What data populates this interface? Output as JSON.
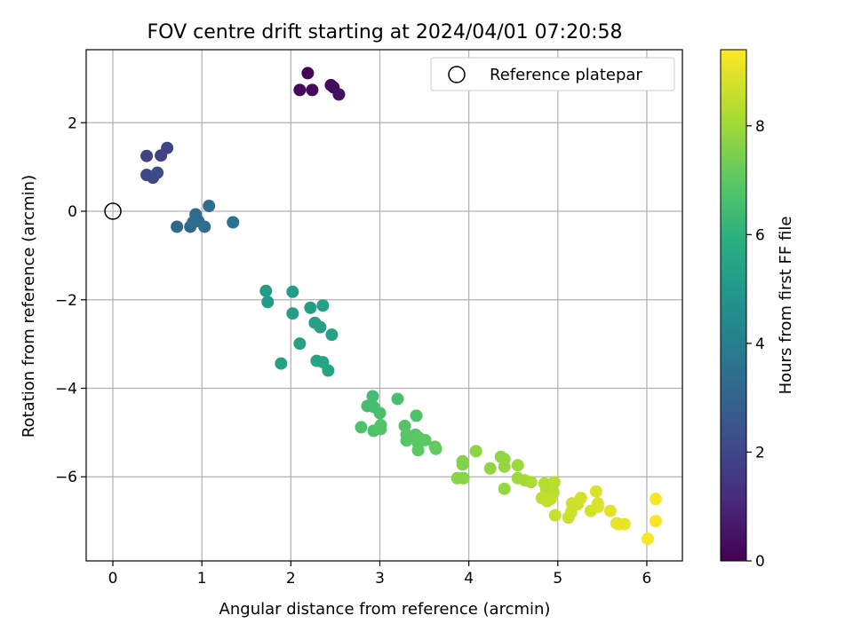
{
  "chart_data": {
    "type": "scatter",
    "title": "FOV centre drift starting at 2024/04/01 07:20:58",
    "xlabel": "Angular distance from reference (arcmin)",
    "ylabel": "Rotation from reference (arcmin)",
    "xlim": [
      -0.3,
      6.4
    ],
    "ylim": [
      -7.9,
      3.65
    ],
    "xticks": [
      0,
      1,
      2,
      3,
      4,
      5,
      6
    ],
    "yticks": [
      -6,
      -4,
      -2,
      0,
      2
    ],
    "grid": true,
    "legend": {
      "placement": "top-right",
      "entries": [
        "Reference platepar"
      ]
    },
    "reference_point": {
      "x": 0,
      "y": 0
    },
    "colorbar": {
      "label": "Hours from first FF file",
      "range": [
        0,
        9.4
      ],
      "ticks": [
        0,
        2,
        4,
        6,
        8
      ],
      "colormap": "viridis"
    },
    "points": [
      {
        "x": 2.19,
        "y": 3.12,
        "t": 0.1
      },
      {
        "x": 2.1,
        "y": 2.74,
        "t": 0.2
      },
      {
        "x": 2.24,
        "y": 2.74,
        "t": 0.2
      },
      {
        "x": 2.45,
        "y": 2.85,
        "t": 0.3
      },
      {
        "x": 2.48,
        "y": 2.8,
        "t": 0.3
      },
      {
        "x": 2.54,
        "y": 2.64,
        "t": 0.4
      },
      {
        "x": 0.38,
        "y": 1.25,
        "t": 1.8
      },
      {
        "x": 0.54,
        "y": 1.26,
        "t": 1.8
      },
      {
        "x": 0.61,
        "y": 1.43,
        "t": 1.9
      },
      {
        "x": 0.38,
        "y": 0.82,
        "t": 2.0
      },
      {
        "x": 0.45,
        "y": 0.76,
        "t": 2.0
      },
      {
        "x": 0.5,
        "y": 0.87,
        "t": 2.1
      },
      {
        "x": 0.72,
        "y": -0.35,
        "t": 3.2
      },
      {
        "x": 0.87,
        "y": -0.35,
        "t": 3.2
      },
      {
        "x": 0.9,
        "y": -0.25,
        "t": 3.3
      },
      {
        "x": 0.93,
        "y": -0.07,
        "t": 3.3
      },
      {
        "x": 0.96,
        "y": -0.22,
        "t": 3.3
      },
      {
        "x": 1.03,
        "y": -0.35,
        "t": 3.4
      },
      {
        "x": 1.08,
        "y": 0.12,
        "t": 3.4
      },
      {
        "x": 1.35,
        "y": -0.25,
        "t": 3.5
      },
      {
        "x": 1.72,
        "y": -1.8,
        "t": 5.1
      },
      {
        "x": 1.74,
        "y": -2.05,
        "t": 5.1
      },
      {
        "x": 2.02,
        "y": -1.82,
        "t": 5.2
      },
      {
        "x": 2.02,
        "y": -2.31,
        "t": 5.2
      },
      {
        "x": 2.22,
        "y": -2.18,
        "t": 5.2
      },
      {
        "x": 2.36,
        "y": -2.13,
        "t": 5.3
      },
      {
        "x": 2.27,
        "y": -2.52,
        "t": 5.3
      },
      {
        "x": 2.33,
        "y": -2.62,
        "t": 5.3
      },
      {
        "x": 2.46,
        "y": -2.79,
        "t": 5.4
      },
      {
        "x": 2.1,
        "y": -2.99,
        "t": 5.4
      },
      {
        "x": 1.89,
        "y": -3.44,
        "t": 5.4
      },
      {
        "x": 2.29,
        "y": -3.38,
        "t": 5.5
      },
      {
        "x": 2.36,
        "y": -3.41,
        "t": 5.5
      },
      {
        "x": 2.42,
        "y": -3.6,
        "t": 5.5
      },
      {
        "x": 2.92,
        "y": -4.18,
        "t": 6.5
      },
      {
        "x": 2.86,
        "y": -4.4,
        "t": 6.5
      },
      {
        "x": 2.93,
        "y": -4.42,
        "t": 6.5
      },
      {
        "x": 3.0,
        "y": -4.56,
        "t": 6.6
      },
      {
        "x": 3.2,
        "y": -4.24,
        "t": 6.6
      },
      {
        "x": 3.41,
        "y": -4.62,
        "t": 6.7
      },
      {
        "x": 2.79,
        "y": -4.88,
        "t": 6.7
      },
      {
        "x": 2.93,
        "y": -4.96,
        "t": 6.7
      },
      {
        "x": 3.01,
        "y": -4.83,
        "t": 6.8
      },
      {
        "x": 3.01,
        "y": -4.92,
        "t": 6.8
      },
      {
        "x": 3.28,
        "y": -4.85,
        "t": 6.8
      },
      {
        "x": 3.3,
        "y": -5.05,
        "t": 6.9
      },
      {
        "x": 3.3,
        "y": -5.18,
        "t": 6.9
      },
      {
        "x": 3.4,
        "y": -5.05,
        "t": 6.9
      },
      {
        "x": 3.44,
        "y": -5.12,
        "t": 7.0
      },
      {
        "x": 3.43,
        "y": -5.24,
        "t": 7.0
      },
      {
        "x": 3.43,
        "y": -5.4,
        "t": 7.0
      },
      {
        "x": 3.51,
        "y": -5.17,
        "t": 7.0
      },
      {
        "x": 3.62,
        "y": -5.32,
        "t": 7.1
      },
      {
        "x": 3.63,
        "y": -5.37,
        "t": 7.1
      },
      {
        "x": 3.93,
        "y": -5.65,
        "t": 7.6
      },
      {
        "x": 3.93,
        "y": -5.72,
        "t": 7.6
      },
      {
        "x": 3.87,
        "y": -6.03,
        "t": 7.7
      },
      {
        "x": 3.94,
        "y": -6.03,
        "t": 7.7
      },
      {
        "x": 4.08,
        "y": -5.42,
        "t": 7.7
      },
      {
        "x": 4.24,
        "y": -5.81,
        "t": 7.8
      },
      {
        "x": 4.36,
        "y": -5.55,
        "t": 7.8
      },
      {
        "x": 4.4,
        "y": -5.6,
        "t": 7.8
      },
      {
        "x": 4.4,
        "y": -5.77,
        "t": 7.9
      },
      {
        "x": 4.4,
        "y": -6.27,
        "t": 7.9
      },
      {
        "x": 4.55,
        "y": -5.74,
        "t": 8.0
      },
      {
        "x": 4.55,
        "y": -6.03,
        "t": 8.0
      },
      {
        "x": 4.63,
        "y": -6.08,
        "t": 8.1
      },
      {
        "x": 4.7,
        "y": -6.12,
        "t": 8.2
      },
      {
        "x": 4.85,
        "y": -6.15,
        "t": 8.3
      },
      {
        "x": 4.87,
        "y": -6.28,
        "t": 8.3
      },
      {
        "x": 4.96,
        "y": -6.12,
        "t": 8.4
      },
      {
        "x": 4.95,
        "y": -6.35,
        "t": 8.4
      },
      {
        "x": 4.82,
        "y": -6.48,
        "t": 8.5
      },
      {
        "x": 4.88,
        "y": -6.55,
        "t": 8.5
      },
      {
        "x": 4.92,
        "y": -6.5,
        "t": 8.5
      },
      {
        "x": 4.97,
        "y": -6.87,
        "t": 8.6
      },
      {
        "x": 5.12,
        "y": -6.92,
        "t": 8.6
      },
      {
        "x": 5.15,
        "y": -6.8,
        "t": 8.7
      },
      {
        "x": 5.16,
        "y": -6.6,
        "t": 8.7
      },
      {
        "x": 5.22,
        "y": -6.62,
        "t": 8.7
      },
      {
        "x": 5.26,
        "y": -6.48,
        "t": 8.8
      },
      {
        "x": 5.37,
        "y": -6.77,
        "t": 8.8
      },
      {
        "x": 5.43,
        "y": -6.33,
        "t": 8.9
      },
      {
        "x": 5.45,
        "y": -6.6,
        "t": 8.9
      },
      {
        "x": 5.45,
        "y": -6.68,
        "t": 8.9
      },
      {
        "x": 5.59,
        "y": -6.77,
        "t": 9.0
      },
      {
        "x": 5.66,
        "y": -7.05,
        "t": 9.0
      },
      {
        "x": 5.68,
        "y": -7.07,
        "t": 9.1
      },
      {
        "x": 5.75,
        "y": -7.07,
        "t": 9.1
      },
      {
        "x": 6.01,
        "y": -7.4,
        "t": 9.3
      },
      {
        "x": 6.1,
        "y": -6.5,
        "t": 9.3
      },
      {
        "x": 6.1,
        "y": -7.0,
        "t": 9.3
      }
    ]
  }
}
